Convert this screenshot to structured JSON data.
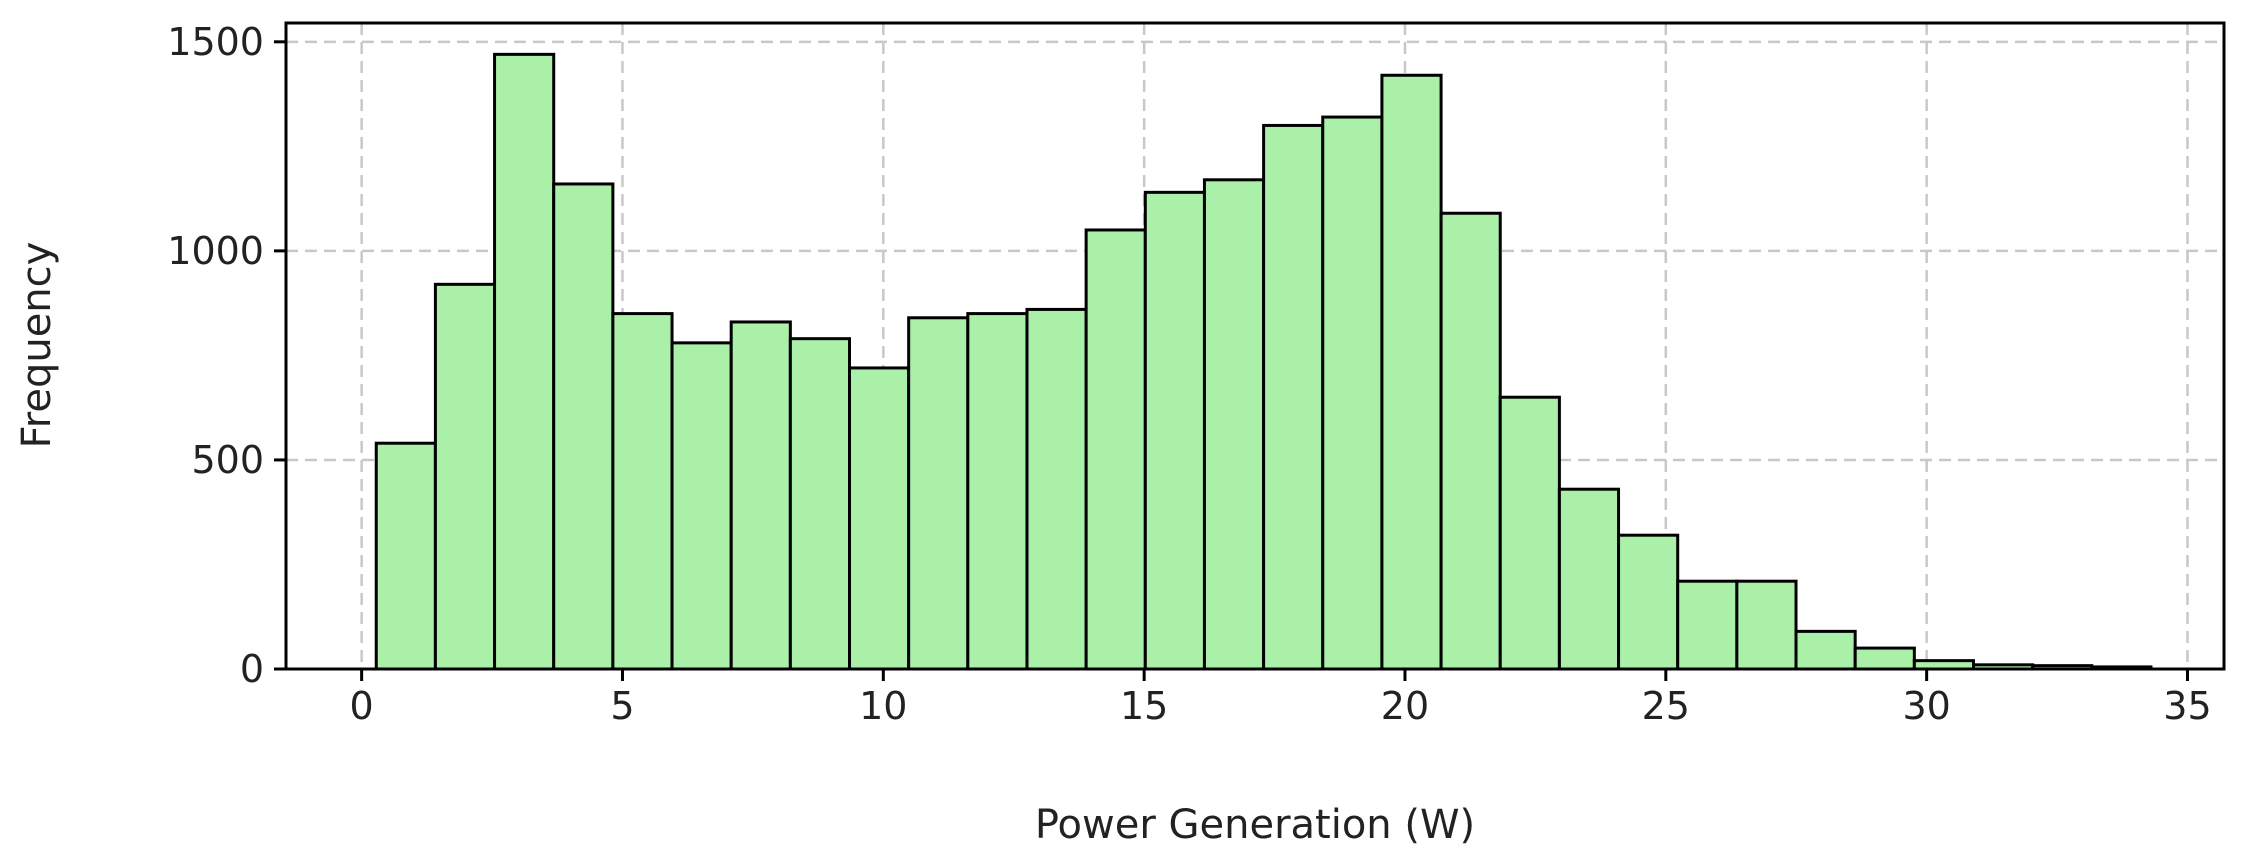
{
  "chart_data": {
    "type": "bar",
    "subtype": "histogram",
    "title": "",
    "xlabel": "Power Generation (W)",
    "ylabel": "Frequency",
    "xlim": [
      -1.45,
      35.7
    ],
    "ylim": [
      0,
      1545
    ],
    "xticks": [
      0,
      5,
      10,
      15,
      20,
      25,
      30,
      35
    ],
    "yticks": [
      0,
      500,
      1000,
      1500
    ],
    "grid": true,
    "bin_start": 0.28,
    "bin_width": 1.134,
    "values": [
      540,
      920,
      1470,
      1160,
      850,
      780,
      830,
      790,
      720,
      840,
      850,
      860,
      1050,
      1140,
      1170,
      1300,
      1320,
      1420,
      1090,
      650,
      430,
      320,
      210,
      210,
      90,
      50,
      20,
      10,
      8,
      5
    ],
    "colors": {
      "bar_fill": "#abf0a8",
      "bar_edge": "#000000",
      "grid": "#c8c8c8"
    }
  }
}
